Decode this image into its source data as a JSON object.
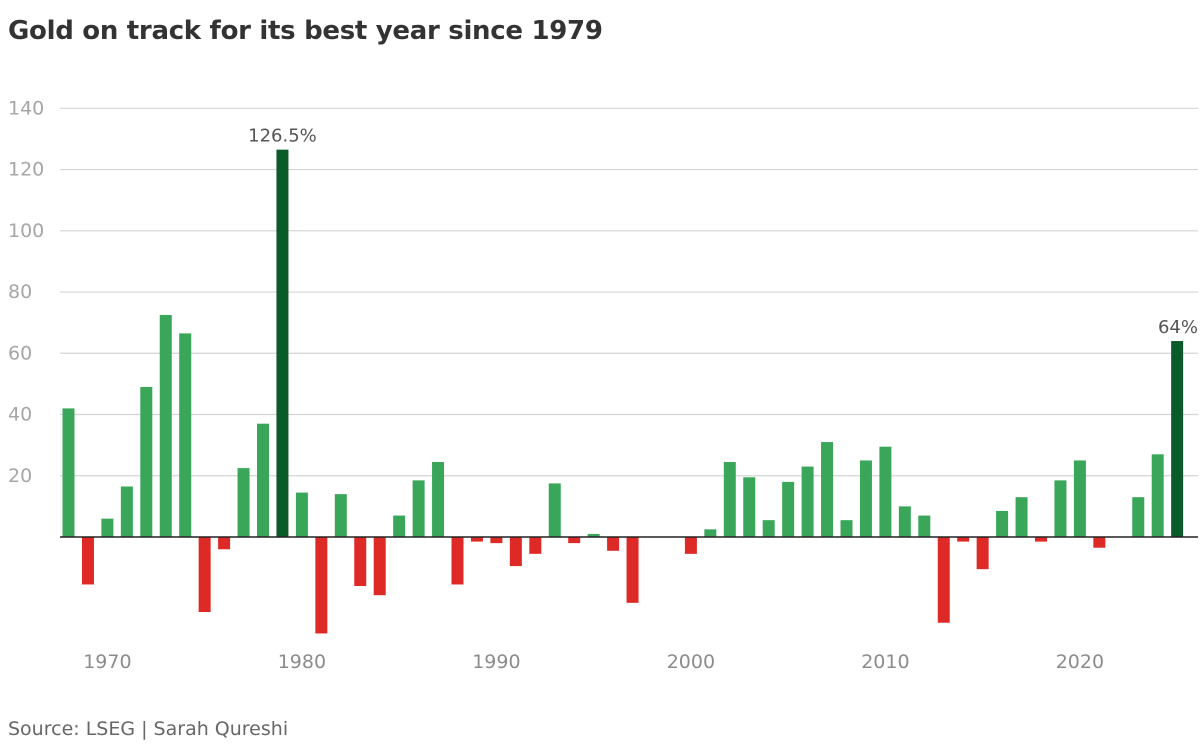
{
  "title": "Gold on track for its best year since 1979",
  "source": "Source: LSEG | Sarah Qureshi",
  "chart_data": {
    "type": "bar",
    "title": "Gold on track for its best year since 1979",
    "xlabel": "",
    "ylabel": "",
    "ylim": [
      -35,
      140
    ],
    "yticks": [
      20,
      40,
      60,
      80,
      100,
      120,
      140
    ],
    "xticks": [
      1970,
      1980,
      1990,
      2000,
      2010,
      2020
    ],
    "grid": true,
    "legend": "none",
    "colors": {
      "positive": "#3aa65a",
      "negative": "#dd2a26",
      "highlight": "#0b5a2a",
      "grid": "#d4d4d4",
      "axis": "#222222"
    },
    "highlight_years": [
      1979,
      2025
    ],
    "bars": [
      {
        "year": 1968,
        "value": 42
      },
      {
        "year": 1969,
        "value": -15.5
      },
      {
        "year": 1970,
        "value": 6
      },
      {
        "year": 1971,
        "value": 16.5
      },
      {
        "year": 1972,
        "value": 49
      },
      {
        "year": 1973,
        "value": 72.5
      },
      {
        "year": 1974,
        "value": 66.5
      },
      {
        "year": 1975,
        "value": -24.5
      },
      {
        "year": 1976,
        "value": -4
      },
      {
        "year": 1977,
        "value": 22.5
      },
      {
        "year": 1978,
        "value": 37
      },
      {
        "year": 1979,
        "value": 126.5
      },
      {
        "year": 1980,
        "value": 14.5
      },
      {
        "year": 1981,
        "value": -31.5
      },
      {
        "year": 1982,
        "value": 14
      },
      {
        "year": 1983,
        "value": -16
      },
      {
        "year": 1984,
        "value": -19
      },
      {
        "year": 1985,
        "value": 7
      },
      {
        "year": 1986,
        "value": 18.5
      },
      {
        "year": 1987,
        "value": 24.5
      },
      {
        "year": 1988,
        "value": -15.5
      },
      {
        "year": 1989,
        "value": -1.5
      },
      {
        "year": 1990,
        "value": -2
      },
      {
        "year": 1991,
        "value": -9.5
      },
      {
        "year": 1992,
        "value": -5.5
      },
      {
        "year": 1993,
        "value": 17.5
      },
      {
        "year": 1994,
        "value": -2
      },
      {
        "year": 1995,
        "value": 1
      },
      {
        "year": 1996,
        "value": -4.5
      },
      {
        "year": 1997,
        "value": -21.5
      },
      {
        "year": 1998,
        "value": 0
      },
      {
        "year": 1999,
        "value": 0
      },
      {
        "year": 2000,
        "value": -5.5
      },
      {
        "year": 2001,
        "value": 2.5
      },
      {
        "year": 2002,
        "value": 24.5
      },
      {
        "year": 2003,
        "value": 19.5
      },
      {
        "year": 2004,
        "value": 5.5
      },
      {
        "year": 2005,
        "value": 18
      },
      {
        "year": 2006,
        "value": 23
      },
      {
        "year": 2007,
        "value": 31
      },
      {
        "year": 2008,
        "value": 5.5
      },
      {
        "year": 2009,
        "value": 25
      },
      {
        "year": 2010,
        "value": 29.5
      },
      {
        "year": 2011,
        "value": 10
      },
      {
        "year": 2012,
        "value": 7
      },
      {
        "year": 2013,
        "value": -28
      },
      {
        "year": 2014,
        "value": -1.5
      },
      {
        "year": 2015,
        "value": -10.5
      },
      {
        "year": 2016,
        "value": 8.5
      },
      {
        "year": 2017,
        "value": 13
      },
      {
        "year": 2018,
        "value": -1.5
      },
      {
        "year": 2019,
        "value": 18.5
      },
      {
        "year": 2020,
        "value": 25
      },
      {
        "year": 2021,
        "value": -3.5
      },
      {
        "year": 2022,
        "value": 0
      },
      {
        "year": 2023,
        "value": 13
      },
      {
        "year": 2024,
        "value": 27
      },
      {
        "year": 2025,
        "value": 64
      }
    ],
    "annotations": [
      {
        "year": 1979,
        "text": "126.5%"
      },
      {
        "year": 2025,
        "text": "64%"
      }
    ]
  }
}
